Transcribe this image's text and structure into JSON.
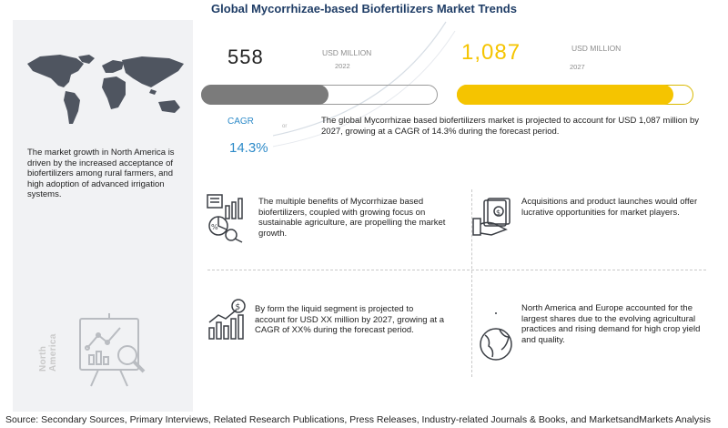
{
  "title": "Global Mycorrhizae-based Biofertilizers Market Trends",
  "market_2022": {
    "value": "558",
    "unit": "USD MILLION",
    "year": "2022"
  },
  "market_2027": {
    "value": "1,087",
    "unit": "USD MILLION",
    "year": "2027"
  },
  "cagr": {
    "label": "CAGR",
    "value": "14.3%"
  },
  "summary": "The global Mycorrhizae based biofertilizers market is projected to account for USD 1,087 million by 2027, growing at a CAGR of 14.3% during the forecast period.",
  "left_text": "The market growth in North America is driven by the increased acceptance of biofertilizers among rural farmers, and high adoption of advanced irrigation systems.",
  "left_vertical_label": "North America",
  "insights": [
    {
      "text": "The  multiple benefits of Mycorrhizae based biofertilizers, coupled with growing focus on sustainable agriculture, are propelling the market growth.",
      "icon": "analytics-report-icon"
    },
    {
      "text": "Acquisitions and product launches would offer lucrative opportunities for market players.",
      "icon": "money-hand-icon"
    },
    {
      "text": "By form the liquid segment is projected to account for  USD XX million by 2027, growing at a CAGR of XX% during the forecast period.",
      "icon": "growth-chart-icon"
    },
    {
      "text": "North America and Europe accounted for the largest shares due to the evolving agricultural practices and  rising demand for high crop yield and quality.",
      "icon": "globe-icon"
    }
  ],
  "footer": "Source: Secondary Sources, Primary Interviews, Related Research Publications, Press Releases, Industry-related Journals & Books, and MarketsandMarkets Analysis",
  "colors": {
    "accent_blue": "#2e8bc9",
    "accent_yellow": "#f5c400",
    "gray_bar": "#7b7b7b",
    "title": "#1f3d66"
  }
}
